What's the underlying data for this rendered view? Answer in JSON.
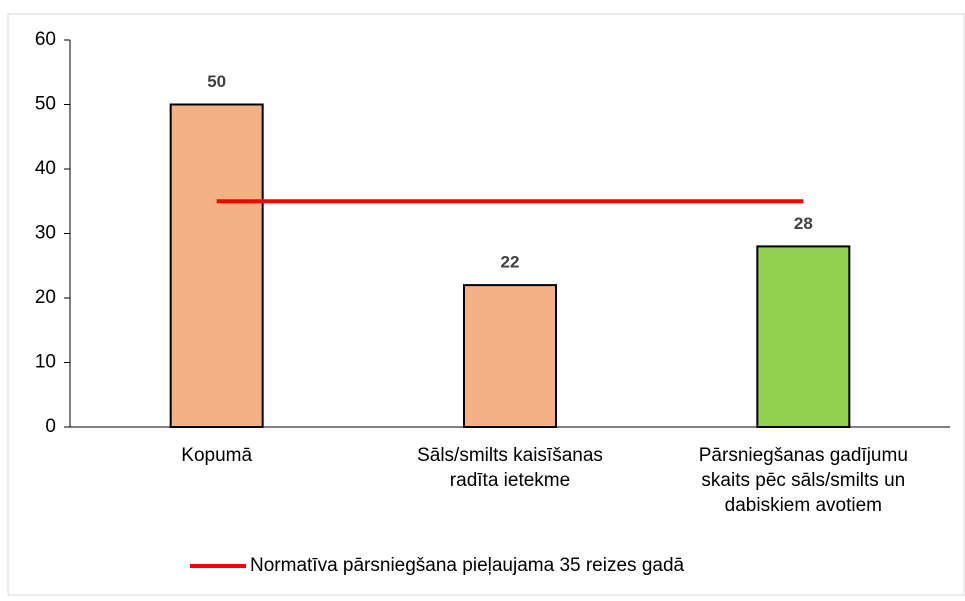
{
  "chart_data": {
    "type": "bar",
    "categories": [
      "Kopumā",
      "Sāls/smilts kaisīšanas\nradīta ietekme",
      "Pārsniegšanas gadījumu\nskaits pēc sāls/smilts un\ndabiskiem avotiem"
    ],
    "series": [
      {
        "type": "bar",
        "colors": [
          "#f4b183",
          "#f4b183",
          "#92d050"
        ],
        "values": [
          50,
          22,
          28
        ]
      },
      {
        "type": "line",
        "name": "Normatīva pārsniegšana pieļaujama 35 reizes gadā",
        "color": "#ff0000",
        "values": [
          35,
          35,
          35
        ]
      }
    ],
    "ylim": [
      0,
      60
    ],
    "yticks": [
      0,
      10,
      20,
      30,
      40,
      50,
      60
    ],
    "grid": false,
    "legend": "bottom"
  }
}
